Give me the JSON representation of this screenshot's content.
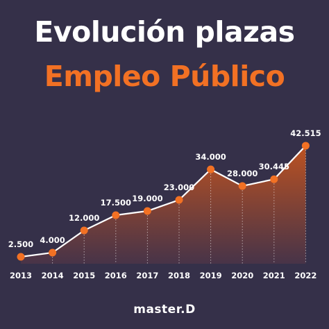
{
  "header": {
    "title_line1": "Evolución plazas",
    "title_line2": "Empleo Público"
  },
  "brand": {
    "logo_text": "master.D"
  },
  "colors": {
    "background": "#353049",
    "accent": "#f27124",
    "line": "#ffffff",
    "text": "#ffffff"
  },
  "chart_data": {
    "type": "area",
    "title": "Evolución plazas Empleo Público",
    "x": [
      "2013",
      "2014",
      "2015",
      "2016",
      "2017",
      "2018",
      "2019",
      "2020",
      "2021",
      "2022"
    ],
    "series": [
      {
        "values": [
          2500,
          4000,
          12000,
          17500,
          19000,
          23000,
          34000,
          28000,
          30445,
          42515
        ],
        "labels": [
          "2.500",
          "4.000",
          "12.000",
          "17.500",
          "19.000",
          "23.000",
          "34.000",
          "28.000",
          "30.445",
          "42.515"
        ]
      }
    ],
    "ylim": [
      0,
      45000
    ],
    "grid": false,
    "legend": "none",
    "xlabel": "",
    "ylabel": ""
  }
}
